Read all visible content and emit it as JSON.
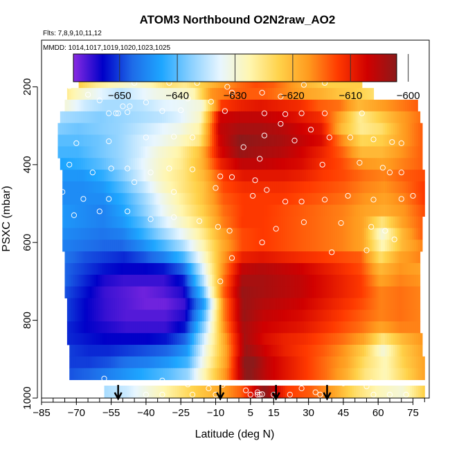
{
  "chart_data": {
    "type": "heatmap",
    "title": "ATOM3 Northbound O2N2raw_AO2",
    "subtitle_flights": "Flts: 7,8,9,10,11,12",
    "subtitle_dates": "MMDD: 1014,1017,1019,1020,1023,1025",
    "xlabel": "Latitude (deg N)",
    "ylabel": "PSXC (mbar)",
    "xlim": [
      -85,
      82
    ],
    "ylim": [
      1000,
      80
    ],
    "y_reversed": true,
    "x_ticks": [
      -85,
      -70,
      -55,
      -40,
      -25,
      -10,
      5,
      15,
      30,
      45,
      60,
      75
    ],
    "y_ticks": [
      200,
      400,
      600,
      800,
      1000
    ],
    "colorbar": {
      "range": [
        -658,
        -602
      ],
      "ticks": [
        -650,
        -640,
        -630,
        -620,
        -610,
        -600
      ],
      "colors": [
        "#8a2be2",
        "#0000c8",
        "#1e6be8",
        "#1ea6ff",
        "#8ad0ff",
        "#e8f6ff",
        "#fff6b0",
        "#ffd24a",
        "#ff9a1e",
        "#ff3a00",
        "#d00000",
        "#8c1a1a"
      ]
    },
    "arrows_latitude": [
      -52,
      -8,
      16,
      38
    ],
    "rows": [
      {
        "p": 188,
        "lat": [
          -69,
          53
        ],
        "v": [
          -622,
          -626,
          -628,
          -630,
          -628,
          -624,
          -626,
          -622,
          -618,
          -615,
          -613,
          -614,
          -617,
          -620,
          -622,
          -622,
          -622
        ]
      },
      {
        "p": 218,
        "lat": [
          -74,
          58
        ],
        "v": [
          -626,
          -630,
          -633,
          -635,
          -633,
          -631,
          -630,
          -628,
          -617,
          -615,
          -614,
          -614,
          -616,
          -618,
          -619,
          -621,
          -622,
          -624
        ]
      },
      {
        "p": 248,
        "lat": [
          -75,
          77
        ],
        "v": [
          -630,
          -634,
          -636,
          -636,
          -635,
          -633,
          -632,
          -630,
          -612,
          -610,
          -609,
          -610,
          -611,
          -614,
          -615,
          -620,
          -618,
          -616,
          -614
        ]
      },
      {
        "p": 278,
        "lat": [
          -77,
          78
        ],
        "v": [
          -636,
          -637,
          -638,
          -637,
          -636,
          -635,
          -633,
          -629,
          -607,
          -606,
          -606,
          -607,
          -609,
          -611,
          -618,
          -626,
          -622,
          -618,
          -615
        ]
      },
      {
        "p": 308,
        "lat": [
          -78,
          79
        ],
        "v": [
          -638,
          -639,
          -638,
          -637,
          -635,
          -633,
          -631,
          -627,
          -606,
          -604,
          -604,
          -605,
          -607,
          -609,
          -620,
          -626,
          -624,
          -618,
          -614
        ]
      },
      {
        "p": 338,
        "lat": [
          -78,
          79
        ],
        "v": [
          -640,
          -640,
          -639,
          -637,
          -634,
          -632,
          -629,
          -625,
          -607,
          -602,
          -603,
          -604,
          -606,
          -608,
          -616,
          -623,
          -622,
          -618,
          -614
        ]
      },
      {
        "p": 368,
        "lat": [
          -78,
          79
        ],
        "v": [
          -641,
          -641,
          -639,
          -637,
          -634,
          -630,
          -627,
          -621,
          -608,
          -603,
          -604,
          -605,
          -607,
          -610,
          -614,
          -620,
          -620,
          -617,
          -614
        ]
      },
      {
        "p": 398,
        "lat": [
          -77,
          79
        ],
        "v": [
          -643,
          -642,
          -640,
          -637,
          -633,
          -629,
          -626,
          -620,
          -610,
          -606,
          -606,
          -607,
          -608,
          -611,
          -613,
          -617,
          -618,
          -616,
          -614
        ]
      },
      {
        "p": 428,
        "lat": [
          -76,
          80
        ],
        "v": [
          -644,
          -644,
          -642,
          -638,
          -633,
          -628,
          -625,
          -620,
          -612,
          -609,
          -609,
          -609,
          -610,
          -612,
          -613,
          -615,
          -616,
          -614,
          -613
        ]
      },
      {
        "p": 458,
        "lat": [
          -76,
          80
        ],
        "v": [
          -645,
          -645,
          -644,
          -640,
          -635,
          -629,
          -625,
          -621,
          -613,
          -611,
          -611,
          -611,
          -612,
          -613,
          -614,
          -616,
          -617,
          -615,
          -612
        ]
      },
      {
        "p": 488,
        "lat": [
          -76,
          80
        ],
        "v": [
          -645,
          -645,
          -645,
          -642,
          -637,
          -631,
          -626,
          -621,
          -614,
          -612,
          -612,
          -612,
          -613,
          -614,
          -615,
          -617,
          -618,
          -616,
          -612
        ]
      },
      {
        "p": 518,
        "lat": [
          -76,
          80
        ],
        "v": [
          -644,
          -645,
          -646,
          -643,
          -638,
          -632,
          -627,
          -622,
          -615,
          -612,
          -612,
          -613,
          -614,
          -615,
          -616,
          -618,
          -619,
          -617,
          -613
        ]
      },
      {
        "p": 548,
        "lat": [
          -76,
          79
        ],
        "v": [
          -644,
          -645,
          -646,
          -644,
          -640,
          -634,
          -629,
          -624,
          -616,
          -612,
          -612,
          -613,
          -614,
          -615,
          -616,
          -618,
          -625,
          -618,
          -614
        ]
      },
      {
        "p": 578,
        "lat": [
          -76,
          79
        ],
        "v": [
          -645,
          -646,
          -647,
          -646,
          -642,
          -637,
          -632,
          -626,
          -618,
          -613,
          -612,
          -613,
          -614,
          -615,
          -616,
          -618,
          -630,
          -620,
          -614
        ]
      },
      {
        "p": 608,
        "lat": [
          -76,
          79
        ],
        "v": [
          -646,
          -647,
          -648,
          -648,
          -645,
          -641,
          -636,
          -628,
          -619,
          -613,
          -612,
          -613,
          -614,
          -615,
          -616,
          -618,
          -628,
          -620,
          -616
        ]
      },
      {
        "p": 638,
        "lat": [
          -75,
          78
        ],
        "v": [
          -647,
          -649,
          -650,
          -651,
          -649,
          -646,
          -641,
          -630,
          -618,
          -610,
          -609,
          -610,
          -611,
          -612,
          -613,
          -614,
          -624,
          -618,
          -616
        ]
      },
      {
        "p": 668,
        "lat": [
          -75,
          78
        ],
        "v": [
          -648,
          -650,
          -652,
          -653,
          -653,
          -652,
          -648,
          -633,
          -617,
          -606,
          -605,
          -606,
          -607,
          -609,
          -611,
          -613,
          -620,
          -617,
          -618
        ]
      },
      {
        "p": 698,
        "lat": [
          -75,
          78
        ],
        "v": [
          -648,
          -651,
          -654,
          -655,
          -655,
          -655,
          -652,
          -636,
          -616,
          -604,
          -604,
          -605,
          -606,
          -608,
          -610,
          -612,
          -618,
          -616,
          -617
        ]
      },
      {
        "p": 728,
        "lat": [
          -75,
          78
        ],
        "v": [
          -649,
          -652,
          -655,
          -656,
          -657,
          -656,
          -654,
          -640,
          -615,
          -603,
          -604,
          -605,
          -606,
          -608,
          -610,
          -612,
          -616,
          -615,
          -616
        ]
      },
      {
        "p": 758,
        "lat": [
          -74,
          78
        ],
        "v": [
          -650,
          -653,
          -655,
          -656,
          -657,
          -657,
          -655,
          -643,
          -616,
          -603,
          -605,
          -606,
          -607,
          -609,
          -611,
          -613,
          -616,
          -615,
          -616
        ]
      },
      {
        "p": 788,
        "lat": [
          -74,
          78
        ],
        "v": [
          -650,
          -653,
          -655,
          -656,
          -656,
          -656,
          -654,
          -640,
          -616,
          -603,
          -606,
          -607,
          -608,
          -610,
          -612,
          -614,
          -616,
          -615,
          -616
        ]
      },
      {
        "p": 818,
        "lat": [
          -74,
          78
        ],
        "v": [
          -651,
          -653,
          -654,
          -655,
          -655,
          -655,
          -652,
          -637,
          -617,
          -604,
          -607,
          -608,
          -609,
          -611,
          -613,
          -615,
          -618,
          -616,
          -616
        ]
      },
      {
        "p": 848,
        "lat": [
          -74,
          79
        ],
        "v": [
          -651,
          -652,
          -653,
          -653,
          -653,
          -652,
          -648,
          -633,
          -618,
          -604,
          -608,
          -610,
          -611,
          -613,
          -615,
          -618,
          -625,
          -620,
          -617
        ]
      },
      {
        "p": 878,
        "lat": [
          -73,
          79
        ],
        "v": [
          -650,
          -651,
          -651,
          -650,
          -649,
          -648,
          -644,
          -630,
          -618,
          -603,
          -607,
          -610,
          -612,
          -614,
          -617,
          -622,
          -630,
          -622,
          -618
        ]
      },
      {
        "p": 908,
        "lat": [
          -73,
          80
        ],
        "v": [
          -650,
          -650,
          -649,
          -647,
          -646,
          -644,
          -641,
          -628,
          -617,
          -600,
          -606,
          -609,
          -612,
          -615,
          -618,
          -624,
          -628,
          -622,
          -618
        ]
      },
      {
        "p": 938,
        "lat": [
          -73,
          80
        ],
        "v": [
          -649,
          -648,
          -646,
          -644,
          -642,
          -640,
          -637,
          -626,
          -616,
          -601,
          -606,
          -609,
          -612,
          -615,
          -619,
          -625,
          -628,
          -623,
          -618
        ]
      }
    ],
    "band_bottom": {
      "p": [
        968,
        1000
      ],
      "lat": [
        -58,
        80
      ],
      "v": [
        -636,
        -634,
        -630,
        -626,
        -622,
        -619,
        -614,
        -602,
        -612,
        -614,
        -618,
        -624,
        -628,
        -630,
        -622
      ]
    },
    "circles": [
      [
        -73,
        198
      ],
      [
        -45,
        190
      ],
      [
        -30,
        190
      ],
      [
        -18,
        190
      ],
      [
        -5,
        200
      ],
      [
        28,
        195
      ],
      [
        37,
        190
      ],
      [
        -65,
        220
      ],
      [
        -60,
        235
      ],
      [
        -50,
        250
      ],
      [
        -47,
        250
      ],
      [
        -40,
        240
      ],
      [
        -22,
        230
      ],
      [
        -12,
        238
      ],
      [
        -3,
        215
      ],
      [
        10,
        215
      ],
      [
        18,
        225
      ],
      [
        -56,
        268
      ],
      [
        -53,
        268
      ],
      [
        -52,
        268
      ],
      [
        -48,
        265
      ],
      [
        -33,
        262
      ],
      [
        -25,
        260
      ],
      [
        -6,
        262
      ],
      [
        11,
        268
      ],
      [
        20,
        270
      ],
      [
        27,
        268
      ],
      [
        37,
        268
      ],
      [
        53,
        268
      ],
      [
        -80,
        328
      ],
      [
        -70,
        345
      ],
      [
        -56,
        340
      ],
      [
        -40,
        330
      ],
      [
        -28,
        328
      ],
      [
        -20,
        330
      ],
      [
        2,
        355
      ],
      [
        11,
        325
      ],
      [
        18,
        295
      ],
      [
        24,
        338
      ],
      [
        31,
        310
      ],
      [
        39,
        330
      ],
      [
        48,
        330
      ],
      [
        58,
        335
      ],
      [
        66,
        342
      ],
      [
        70,
        345
      ],
      [
        -73,
        400
      ],
      [
        -63,
        420
      ],
      [
        -55,
        410
      ],
      [
        -48,
        410
      ],
      [
        -38,
        420
      ],
      [
        -30,
        410
      ],
      [
        -20,
        412
      ],
      [
        -8,
        430
      ],
      [
        -3,
        432
      ],
      [
        9,
        385
      ],
      [
        7,
        440
      ],
      [
        36,
        400
      ],
      [
        52,
        395
      ],
      [
        62,
        408
      ],
      [
        65,
        420
      ],
      [
        70,
        420
      ],
      [
        -76,
        470
      ],
      [
        -67,
        488
      ],
      [
        -56,
        488
      ],
      [
        -45,
        445
      ],
      [
        -28,
        470
      ],
      [
        -10,
        460
      ],
      [
        6,
        480
      ],
      [
        12,
        465
      ],
      [
        20,
        495
      ],
      [
        27,
        495
      ],
      [
        37,
        490
      ],
      [
        47,
        480
      ],
      [
        58,
        490
      ],
      [
        70,
        488
      ],
      [
        75,
        480
      ],
      [
        -71,
        530
      ],
      [
        -60,
        520
      ],
      [
        -48,
        520
      ],
      [
        -38,
        540
      ],
      [
        -28,
        535
      ],
      [
        -17,
        545
      ],
      [
        -9,
        560
      ],
      [
        -4,
        570
      ],
      [
        16,
        565
      ],
      [
        28,
        548
      ],
      [
        44,
        550
      ],
      [
        57,
        560
      ],
      [
        63,
        570
      ],
      [
        67,
        592
      ],
      [
        -3,
        640
      ],
      [
        10,
        600
      ],
      [
        -8,
        700
      ],
      [
        40,
        625
      ],
      [
        55,
        620
      ],
      [
        -75,
        960
      ],
      [
        -58,
        950
      ],
      [
        -33,
        955
      ],
      [
        -22,
        965
      ],
      [
        -13,
        975
      ],
      [
        -7,
        966
      ],
      [
        3,
        980
      ],
      [
        8,
        985
      ],
      [
        8,
        1000
      ],
      [
        9,
        1000
      ],
      [
        10,
        990
      ],
      [
        27,
        975
      ],
      [
        33,
        985
      ],
      [
        45,
        962
      ],
      [
        55,
        970
      ],
      [
        57,
        960
      ],
      [
        58,
        1000
      ],
      [
        -40,
        1000
      ],
      [
        -33,
        1000
      ],
      [
        -20,
        1000
      ],
      [
        -10,
        1000
      ],
      [
        5,
        1000
      ],
      [
        15,
        1000
      ],
      [
        22,
        1000
      ],
      [
        35,
        1000
      ],
      [
        65,
        1000
      ],
      [
        72,
        1000
      ]
    ]
  }
}
